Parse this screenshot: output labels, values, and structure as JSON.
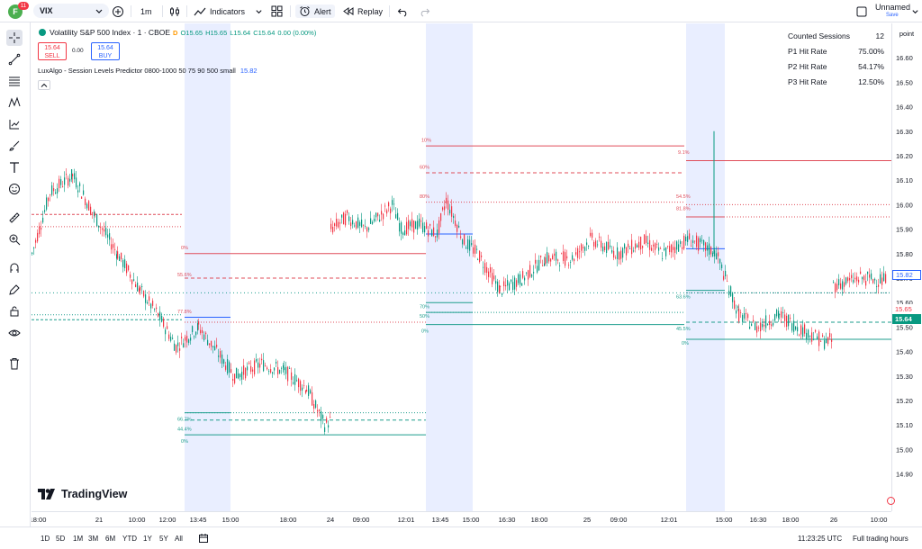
{
  "topbar": {
    "avatar_letter": "F",
    "avatar_badge": "11",
    "symbol": "VIX",
    "interval": "1m",
    "indicators_label": "Indicators",
    "alert_label": "Alert",
    "replay_label": "Replay",
    "layout_name": "Unnamed",
    "save_label": "Save"
  },
  "legend": {
    "title": "Volatility S&P 500 Index · 1 · CBOE",
    "badge": "D",
    "open": "O15.65",
    "high": "H15.65",
    "low": "L15.64",
    "close": "C15.64",
    "change": "0.00 (0.00%)",
    "sell_price": "15.64",
    "sell_label": "SELL",
    "spread": "0.00",
    "buy_price": "15.64",
    "buy_label": "BUY"
  },
  "indicator": {
    "name": "LuxAlgo - Session Levels Predictor",
    "params": "0800-1000 50 75 90 500 small",
    "value": "15.82"
  },
  "stats": {
    "rows": [
      {
        "label": "Counted Sessions",
        "value": "12"
      },
      {
        "label": "P1 Hit Rate",
        "value": "75.00%"
      },
      {
        "label": "P2 Hit Rate",
        "value": "54.17%"
      },
      {
        "label": "P3 Hit Rate",
        "value": "12.50%"
      }
    ]
  },
  "price_axis": {
    "unit_label": "point",
    "ticks": [
      "16.70",
      "16.60",
      "16.50",
      "16.40",
      "16.30",
      "16.20",
      "16.10",
      "16.00",
      "15.90",
      "15.80",
      "15.70",
      "15.60",
      "15.50",
      "15.40",
      "15.30",
      "15.20",
      "15.10",
      "15.00",
      "14.90"
    ],
    "tag_indicator": "15.82",
    "tag_prev": "15.65",
    "tag_last": "15.64"
  },
  "time_axis": {
    "labels": [
      "18:00",
      "21",
      "10:00",
      "12:00",
      "13:45",
      "15:00",
      "18:00",
      "24",
      "09:00",
      "12:01",
      "13:45",
      "15:00",
      "16:30",
      "18:00",
      "25",
      "09:00",
      "12:01",
      "15:00",
      "16:30",
      "18:00",
      "26",
      "10:00"
    ]
  },
  "level_labels": {
    "s1": [
      "0%",
      "55.6%",
      "77.8%",
      "66.7%",
      "44.4%",
      "0%"
    ],
    "s2": [
      "10%",
      "60%",
      "80%",
      "70%",
      "50%",
      "0%"
    ],
    "s3": [
      "9.1%",
      "54.5%",
      "81.8%",
      "63.6%",
      "45.5%",
      "0%"
    ]
  },
  "bottombar": {
    "ranges": [
      "1D",
      "5D",
      "1M",
      "3M",
      "6M",
      "YTD",
      "1Y",
      "5Y",
      "All"
    ],
    "clock": "11:23:25 UTC",
    "session": "Full trading hours"
  },
  "branding": {
    "logo_text": "TradingView"
  },
  "colors": {
    "up": "#089981",
    "down": "#f23645",
    "accent": "#2962ff",
    "session_fill": "#e3eaff"
  }
}
